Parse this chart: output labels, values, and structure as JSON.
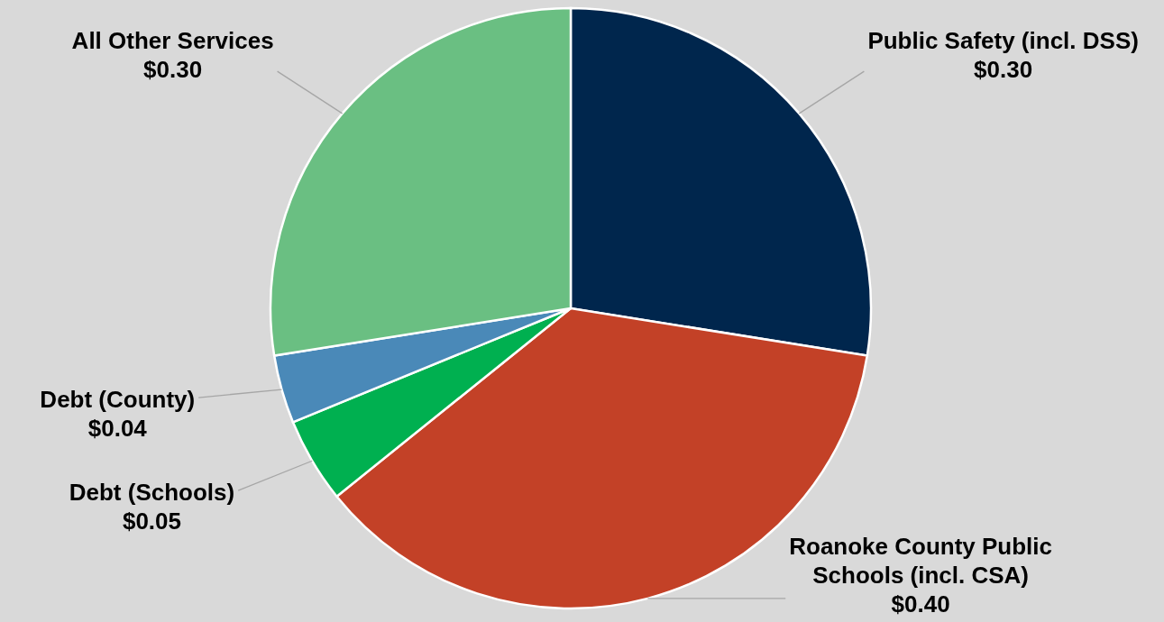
{
  "chart_data": {
    "type": "pie",
    "categories": [
      "Public Safety (incl. DSS)",
      "Roanoke County Public Schools (incl. CSA)",
      "Debt (Schools)",
      "Debt (County)",
      "All Other Services"
    ],
    "values": [
      0.3,
      0.4,
      0.05,
      0.04,
      0.3
    ],
    "colors": [
      "#00264d",
      "#c34127",
      "#00b050",
      "#4a89b8",
      "#6abf82"
    ],
    "value_labels": [
      "$0.30",
      "$0.40",
      "$0.05",
      "$0.04",
      "$0.30"
    ]
  }
}
